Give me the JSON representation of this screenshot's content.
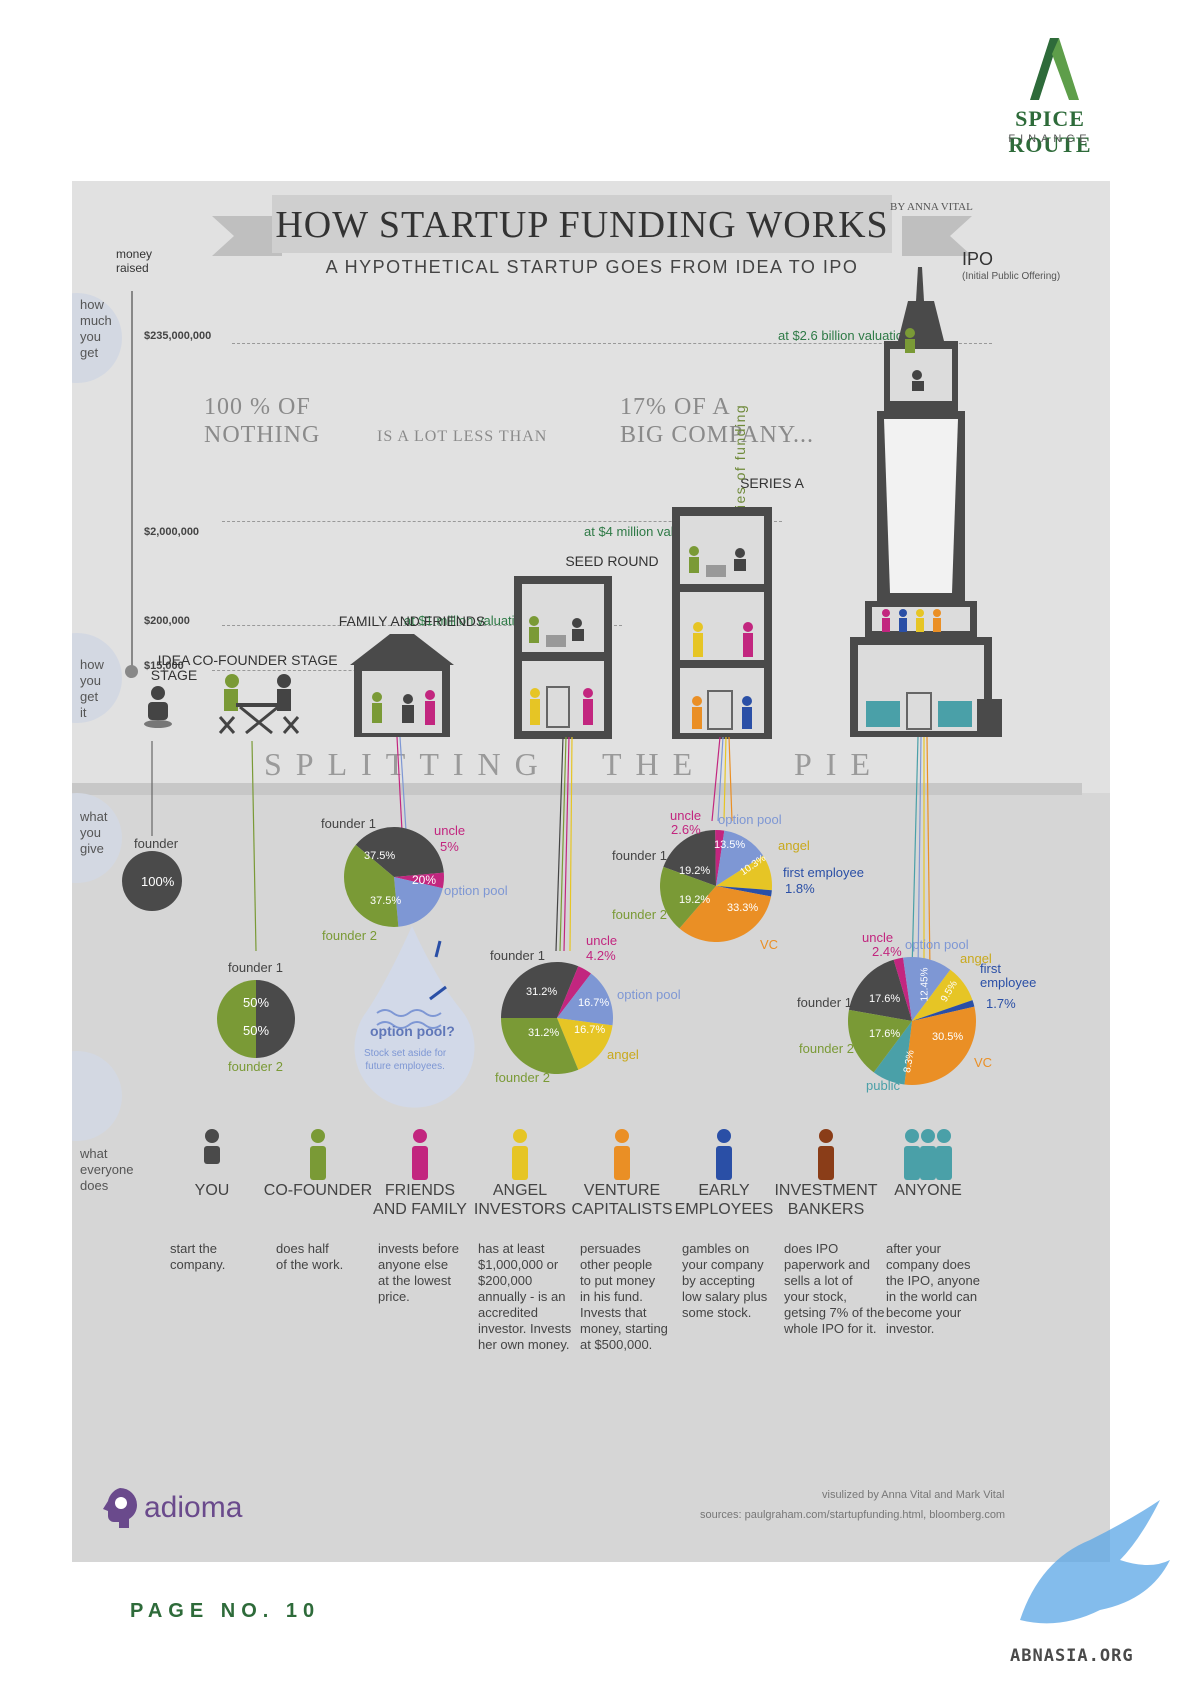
{
  "brand": {
    "name": "SPICE ROUTE",
    "sub": "FINANCE",
    "accent": "#2e6b3a",
    "accent_light": "#5e9e4a"
  },
  "page_number": "PAGE NO. 10",
  "watermark": "ABNASIA.ORG",
  "poster": {
    "title": "HOW STARTUP FUNDING WORKS",
    "byline": "BY ANNA VITAL",
    "subtitle": "A HYPOTHETICAL STARTUP GOES FROM IDEA TO IPO",
    "money_raised": "money\nraised",
    "side_labels": {
      "how_much": "how\nmuch\nyou\nget",
      "how_get": "how\nyou\nget\nit",
      "what_give": "what\nyou\ngive",
      "what_does": "what\neveryone\ndoes"
    },
    "amounts": [
      "$235,000,000",
      "$2,000,000",
      "$200,000",
      "$15,000"
    ],
    "valuations": [
      "at $2.6 billion valuation",
      "at $4 million valuation",
      "at $1 million valuation"
    ],
    "quote": {
      "left": "100 % OF\nNOTHING",
      "middle": "IS A LOT LESS THAN",
      "right": "17% OF A\nBIG COMPANY..."
    },
    "ipo": {
      "label": "IPO",
      "sub": "(Initial Public Offering)"
    },
    "stages": [
      "IDEA\nSTAGE",
      "CO-FOUNDER STAGE",
      "FAMILY AND FRIENDS",
      "SEED ROUND",
      "SERIES A"
    ],
    "more_series": "some more series of funding",
    "splitting": [
      "SPLITTING",
      "THE",
      "PIE"
    ],
    "pies": {
      "idea": {
        "founder": "founder",
        "value": "100%"
      },
      "cofounder": {
        "top": "founder 1",
        "bottom": "founder 2",
        "v1": "50%",
        "v2": "50%"
      },
      "family": {
        "founder1": "founder 1",
        "founder2": "founder 2",
        "uncle": "uncle",
        "uncle_pct": "5%",
        "option_pool": "option pool",
        "v1": "37.5%",
        "v2": "37.5%",
        "v3": "20%"
      },
      "seed": {
        "founder1": "founder 1",
        "founder2": "founder 2",
        "uncle": "uncle",
        "uncle_pct": "4.2%",
        "option_pool": "option pool",
        "angel": "angel",
        "v1": "31.2%",
        "v2": "31.2%",
        "v3": "16.7%",
        "v4": "16.7%"
      },
      "seriesA": {
        "founder1": "founder 1",
        "founder2": "founder 2",
        "uncle": "uncle",
        "uncle_pct": "2.6%",
        "option_pool": "option pool",
        "angel": "angel",
        "first_employee": "first employee",
        "fe_pct": "1.8%",
        "vc": "VC",
        "v1": "19.2%",
        "v2": "19.2%",
        "v3": "13.5%",
        "v4": "10.3%",
        "v5": "33.3%"
      },
      "ipo": {
        "founder1": "founder 1",
        "founder2": "founder 2",
        "uncle": "uncle",
        "uncle_pct": "2.4%",
        "option_pool": "option pool",
        "angel": "angel",
        "first_employee": "first\nemployee",
        "fe_pct": "1.7%",
        "vc": "VC",
        "public": "public",
        "v1": "17.6%",
        "v2": "17.6%",
        "v3": "12.45%",
        "v4": "9.5%",
        "v5": "30.5%",
        "v6": "8.3%"
      }
    },
    "option_pool_note": {
      "title": "option pool?",
      "text": "Stock set aside for\nfuture employees."
    },
    "roles": [
      {
        "name": "YOU",
        "desc": "start the\ncompany.",
        "color": "#4a4a4a"
      },
      {
        "name": "CO-FOUNDER",
        "desc": "does half\nof the work.",
        "color": "#7a9a36"
      },
      {
        "name": "FRIENDS\nAND FAMILY",
        "desc": "invests before\nanyone else\nat the lowest\nprice.",
        "color": "#c2267f"
      },
      {
        "name": "ANGEL\nINVESTORS",
        "desc": "has at least\n$1,000,000 or\n$200,000\nannually - is an\naccredited\ninvestor. Invests\nher own money.",
        "color": "#e6c525"
      },
      {
        "name": "VENTURE\nCAPITALISTS",
        "desc": "persuades\nother people\nto put money\nin his fund.\nInvests that\nmoney, starting\nat $500,000.",
        "color": "#ea8f25"
      },
      {
        "name": "EARLY\nEMPLOYEES",
        "desc": "gambles on\nyour company\nby accepting\nlow salary plus\nsome stock.",
        "color": "#2a4fa6"
      },
      {
        "name": "INVESTMENT\nBANKERS",
        "desc": "does IPO\npaperwork and\nsells a lot of\nyour stock,\ngetsing 7% of the\nwhole IPO for it.",
        "color": "#8a3d18"
      },
      {
        "name": "ANYONE",
        "desc": "after your\ncompany does\nthe IPO, anyone\nin the world can\nbecome your\ninvestor.",
        "color": "#4aa0a8"
      }
    ],
    "footer_brand": "adioma",
    "credit": "visulized by Anna Vital and Mark Vital",
    "sources": "sources:  paulgraham.com/startupfunding.html, bloomberg.com"
  },
  "colors": {
    "founder1": "#4a4a4a",
    "founder2": "#7a9a36",
    "uncle": "#c2267f",
    "option": "#7e97d4",
    "angel": "#e6c525",
    "vc": "#ea8f25",
    "employee": "#2a4fa6",
    "public": "#4aa0a8",
    "valuation_text": "#2e7a46"
  }
}
